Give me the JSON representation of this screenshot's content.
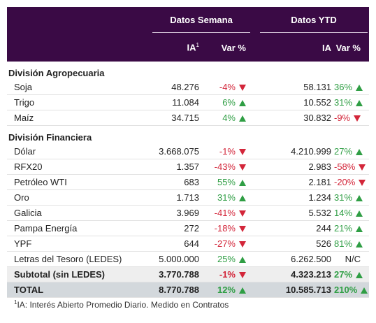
{
  "header": {
    "group_1": "Datos Semana",
    "group_2": "Datos YTD",
    "ia": "IA",
    "ia_note": "1",
    "var": "Var %",
    "ia_ytd": "IA",
    "var_ytd": "Var %"
  },
  "sections": [
    {
      "title": "División Agropecuaria",
      "rows": [
        [
          "Soja",
          "48.276",
          "-4%",
          "58.131",
          "36%"
        ],
        [
          "Trigo",
          "11.084",
          "6%",
          "10.552",
          "31%"
        ],
        [
          "Maíz",
          "34.715",
          "4%",
          "30.832",
          "-9%"
        ]
      ]
    },
    {
      "title": "División Financiera",
      "rows": [
        [
          "Dólar",
          "3.668.075",
          "-1%",
          "4.210.999",
          "27%"
        ],
        [
          "RFX20",
          "1.357",
          "-43%",
          "2.983",
          "-58%"
        ],
        [
          "Petróleo WTI",
          "683",
          "55%",
          "2.181",
          "-20%"
        ],
        [
          "Oro",
          "1.713",
          "31%",
          "1.234",
          "31%"
        ],
        [
          "Galicia",
          "3.969",
          "-41%",
          "5.532",
          "14%"
        ],
        [
          "Pampa Energía",
          "272",
          "-18%",
          "244",
          "21%"
        ],
        [
          "YPF",
          "644",
          "-27%",
          "526",
          "81%"
        ],
        [
          "Letras del Tesoro (LEDES)",
          "5.000.000",
          "25%",
          "6.262.500",
          "N/C"
        ]
      ]
    }
  ],
  "subtotal": [
    "Subtotal (sin LEDES)",
    "3.770.788",
    "-1%",
    "4.323.213",
    "27%"
  ],
  "total": [
    "TOTAL",
    "8.770.788",
    "12%",
    "10.585.713",
    "210%"
  ],
  "footnote": {
    "marker": "1",
    "text": "IA: Interés Abierto Promedio Diario. Medido en Contratos"
  }
}
